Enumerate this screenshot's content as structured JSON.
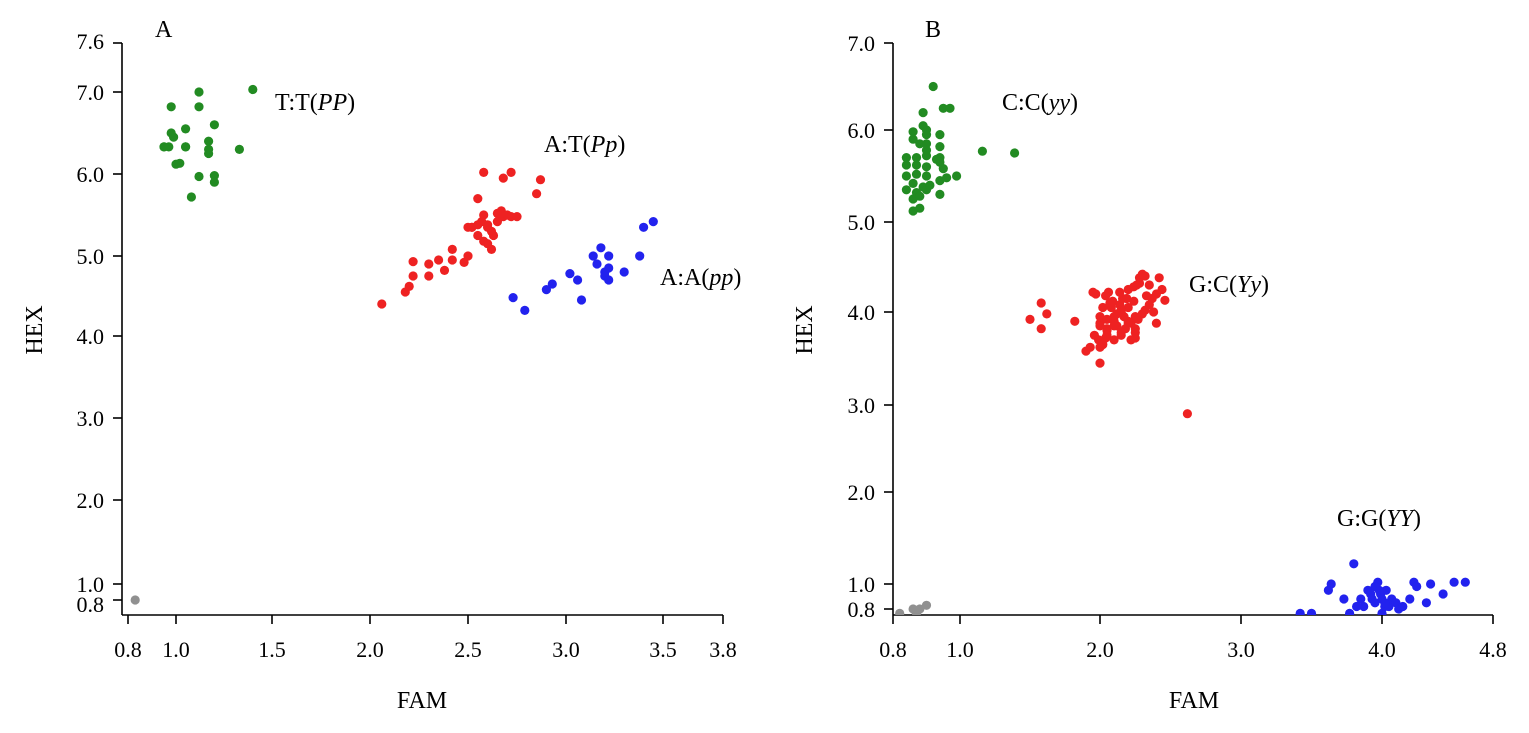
{
  "chart_data": [
    {
      "panel": "A",
      "type": "scatter",
      "xlabel": "FAM",
      "ylabel": "HEX",
      "xlim": [
        0.8,
        3.8
      ],
      "ylim": [
        0.6,
        7.6
      ],
      "xticks": [
        "0.8",
        "1.0",
        "1.5",
        "2.0",
        "2.5",
        "3.0",
        "3.5",
        "3.8"
      ],
      "xtick_values": [
        0.8,
        1.0,
        1.5,
        2.0,
        2.5,
        3.0,
        3.5,
        3.8
      ],
      "yticks": [
        "0.8",
        "1.0",
        "2.0",
        "3.0",
        "4.0",
        "5.0",
        "6.0",
        "7.0",
        "7.6"
      ],
      "ytick_values": [
        0.8,
        1.0,
        2.0,
        3.0,
        4.0,
        5.0,
        6.0,
        7.0,
        7.6
      ],
      "grid": false,
      "clusters": [
        {
          "label_prefix": "T:T(",
          "label_italic": "PP",
          "label_suffix": ")",
          "color": "#228B22",
          "x": [
            1.12,
            0.98,
            1.12,
            1.05,
            0.99,
            1.17,
            1.2,
            0.95,
            0.95,
            0.97,
            0.98,
            1.05,
            1.05,
            1.17,
            1.17,
            1.0,
            1.02,
            1.12,
            1.2,
            1.2,
            1.08,
            1.4,
            1.33
          ],
          "y": [
            7.0,
            6.82,
            6.82,
            6.55,
            6.45,
            6.4,
            6.6,
            6.33,
            6.33,
            6.33,
            6.5,
            6.33,
            6.33,
            6.25,
            6.3,
            6.12,
            6.13,
            5.97,
            5.98,
            5.9,
            5.72,
            7.03,
            6.3
          ]
        },
        {
          "label_prefix": "A:T(",
          "label_italic": "Pp",
          "label_suffix": ")",
          "color": "#EE2222",
          "x": [
            2.06,
            2.18,
            2.2,
            2.22,
            2.22,
            2.3,
            2.3,
            2.35,
            2.38,
            2.42,
            2.42,
            2.48,
            2.5,
            2.5,
            2.52,
            2.55,
            2.55,
            2.57,
            2.58,
            2.6,
            2.6,
            2.62,
            2.62,
            2.65,
            2.65,
            2.67,
            2.68,
            2.7,
            2.72,
            2.75,
            2.58,
            2.68,
            2.72,
            2.85,
            2.87,
            2.55,
            2.58,
            2.6,
            2.63,
            2.52
          ],
          "y": [
            4.4,
            4.55,
            4.62,
            4.75,
            4.93,
            4.75,
            4.9,
            4.95,
            4.82,
            4.95,
            5.08,
            4.92,
            5.0,
            5.35,
            5.35,
            5.25,
            5.38,
            5.42,
            5.18,
            5.15,
            5.35,
            5.3,
            5.08,
            5.52,
            5.42,
            5.55,
            5.48,
            5.5,
            5.48,
            5.48,
            6.02,
            5.95,
            6.02,
            5.76,
            5.93,
            5.7,
            5.5,
            5.38,
            5.25,
            5.35
          ]
        },
        {
          "label_prefix": "A:A(",
          "label_italic": "pp",
          "label_suffix": ")",
          "color": "#2222EE",
          "x": [
            2.73,
            2.79,
            2.9,
            2.93,
            3.02,
            3.06,
            3.08,
            3.14,
            3.16,
            3.18,
            3.2,
            3.2,
            3.22,
            3.22,
            3.22,
            3.3,
            3.38,
            3.4,
            3.45
          ],
          "y": [
            4.48,
            4.32,
            4.58,
            4.65,
            4.78,
            4.7,
            4.45,
            5.0,
            4.9,
            5.1,
            4.8,
            4.75,
            5.0,
            4.85,
            4.7,
            4.8,
            5.0,
            5.35,
            5.42
          ]
        },
        {
          "label_prefix": "",
          "label_italic": "",
          "label_suffix": "",
          "color": "#909090",
          "x": [
            0.83
          ],
          "y": [
            0.8
          ]
        }
      ]
    },
    {
      "panel": "B",
      "type": "scatter",
      "xlabel": "FAM",
      "ylabel": "HEX",
      "xlim": [
        0.8,
        4.8
      ],
      "ylim": [
        0.8,
        7.0
      ],
      "xticks": [
        "0.8",
        "1.0",
        "2.0",
        "3.0",
        "4.0",
        "4.8"
      ],
      "xtick_values": [
        0.8,
        1.0,
        2.0,
        3.0,
        4.0,
        4.8
      ],
      "yticks": [
        "0.8",
        "1.0",
        "2.0",
        "3.0",
        "4.0",
        "5.0",
        "6.0",
        "7.0"
      ],
      "ytick_values": [
        0.8,
        1.0,
        2.0,
        3.0,
        4.0,
        5.0,
        6.0,
        7.0
      ],
      "grid": false,
      "clusters": [
        {
          "label_prefix": "C:C(",
          "label_italic": "yy",
          "label_suffix": ")",
          "color": "#228B22",
          "x": [
            0.92,
            0.89,
            0.95,
            0.89,
            0.9,
            0.9,
            0.94,
            0.86,
            0.88,
            0.9,
            0.94,
            0.84,
            0.87,
            0.9,
            0.94,
            0.84,
            0.87,
            0.9,
            0.95,
            0.84,
            0.87,
            0.9,
            0.94,
            0.86,
            0.89,
            0.96,
            0.99,
            0.84,
            0.87,
            0.9,
            0.94,
            0.86,
            0.88,
            0.86,
            0.88,
            0.91,
            0.94,
            0.97,
            1.16,
            1.39,
            0.86,
            0.9,
            0.93
          ],
          "y": [
            6.5,
            6.2,
            6.25,
            6.05,
            6.0,
            5.95,
            5.95,
            5.9,
            5.85,
            5.85,
            5.82,
            5.7,
            5.7,
            5.72,
            5.7,
            5.62,
            5.62,
            5.6,
            5.58,
            5.5,
            5.52,
            5.5,
            5.45,
            5.42,
            5.38,
            5.48,
            5.5,
            5.35,
            5.32,
            5.35,
            5.3,
            5.25,
            5.15,
            5.12,
            5.28,
            5.4,
            5.65,
            6.25,
            5.77,
            5.75,
            5.98,
            5.78,
            5.68
          ]
        },
        {
          "label_prefix": "G:C(",
          "label_italic": "Yy",
          "label_suffix": ")",
          "color": "#EE2222",
          "x": [
            1.5,
            1.58,
            1.62,
            1.58,
            1.82,
            1.9,
            1.93,
            1.96,
            1.97,
            1.99,
            2.0,
            2.02,
            2.04,
            2.05,
            2.06,
            2.08,
            2.1,
            2.12,
            2.14,
            2.15,
            2.16,
            2.18,
            2.2,
            2.22,
            2.24,
            2.25,
            2.26,
            2.28,
            2.3,
            2.32,
            2.35,
            2.38,
            2.4,
            2.42,
            2.44,
            2.46,
            2.0,
            2.05,
            2.1,
            2.15,
            2.2,
            2.25,
            2.02,
            2.07,
            2.12,
            2.17,
            2.22,
            2.27,
            2.32,
            2.37,
            2.0,
            2.05,
            2.1,
            2.15,
            2.2,
            2.25,
            2.3,
            2.35,
            2.4,
            2.62,
            2.0,
            2.05,
            2.1,
            2.15,
            2.2,
            2.25,
            2.04,
            2.09,
            2.14,
            2.19,
            2.24,
            1.95,
            2.0,
            2.28,
            2.33
          ],
          "y": [
            3.92,
            4.1,
            3.98,
            3.82,
            3.9,
            3.58,
            3.62,
            3.75,
            4.2,
            3.7,
            3.45,
            3.65,
            3.72,
            3.8,
            4.22,
            4.05,
            3.95,
            3.85,
            4.08,
            3.75,
            4.15,
            3.82,
            4.25,
            3.7,
            4.12,
            3.72,
            4.3,
            4.38,
            4.42,
            4.4,
            4.3,
            4.0,
            3.88,
            4.38,
            4.25,
            4.13,
            3.88,
            3.82,
            3.9,
            4.0,
            4.05,
            3.95,
            4.05,
            4.1,
            3.98,
            3.95,
            3.88,
            3.92,
            4.02,
            4.15,
            3.95,
            3.75,
            3.7,
            3.78,
            3.88,
            3.82,
            3.98,
            4.08,
            4.2,
            2.9,
            3.85,
            3.92,
            3.85,
            4.02,
            3.9,
            3.78,
            4.18,
            4.12,
            4.22,
            4.15,
            4.28,
            4.22,
            3.62,
            4.32,
            4.18
          ]
        },
        {
          "label_prefix": "G:G(",
          "label_italic": "YY",
          "label_suffix": ")",
          "color": "#2222EE",
          "x": [
            3.42,
            3.5,
            3.62,
            3.64,
            3.73,
            3.77,
            3.8,
            3.82,
            3.85,
            3.87,
            3.9,
            3.92,
            3.93,
            3.95,
            3.97,
            3.99,
            4.0,
            4.0,
            4.02,
            4.03,
            4.05,
            4.07,
            4.1,
            4.12,
            4.15,
            4.2,
            4.23,
            4.25,
            4.32,
            4.35,
            4.44,
            4.52,
            4.6,
            3.98,
            3.95,
            4.02
          ],
          "y": [
            0.78,
            0.78,
            0.95,
            1.0,
            0.88,
            0.78,
            1.22,
            0.82,
            0.88,
            0.82,
            0.95,
            0.92,
            0.88,
            0.85,
            1.02,
            0.92,
            0.88,
            0.78,
            0.82,
            0.95,
            0.82,
            0.88,
            0.85,
            0.8,
            0.82,
            0.88,
            1.02,
            0.98,
            0.85,
            1.0,
            0.92,
            1.02,
            1.02,
            0.95,
            0.98,
            0.85
          ]
        },
        {
          "label_prefix": "",
          "label_italic": "",
          "label_suffix": "",
          "color": "#909090",
          "x": [
            0.82,
            0.86,
            0.87,
            0.87,
            0.88,
            0.9
          ],
          "y": [
            0.78,
            0.8,
            0.78,
            0.75,
            0.8,
            0.83
          ]
        }
      ]
    }
  ]
}
